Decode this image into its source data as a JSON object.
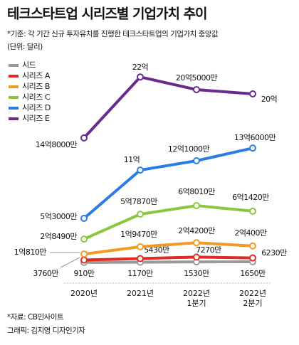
{
  "chart_data": {
    "type": "line",
    "title": "테크스타트업 시리즈별 기업가치 추이",
    "subtitle": "*기준: 각 기간 신규 투자유치를 진행한 테크스타트업의 기업가치 중앙값",
    "unit": "(단위: 달러)",
    "source": "*자료: CB인사이트",
    "credit": "그래픽: 김지영 디자인기자",
    "categories": [
      "2020년",
      "2021년",
      "2022년\n1분기",
      "2022년\n2분기"
    ],
    "series": [
      {
        "name": "시드",
        "color": "#9a9a9a",
        "values": [
          9100000,
          11700000,
          15300000,
          16500000
        ],
        "value_labels": [
          "910만",
          "1170만",
          "1530만",
          "1650만"
        ]
      },
      {
        "name": "시리즈 A",
        "color": "#e12a23",
        "values": [
          37600000,
          54300000,
          72700000,
          62300000
        ],
        "value_labels": [
          "3760만",
          "5430만",
          "7270만",
          "6230만"
        ]
      },
      {
        "name": "시리즈 B",
        "color": "#f39a24",
        "values": [
          108100000,
          194700000,
          242000000,
          204000000
        ],
        "value_labels": [
          "1억810만",
          "1억9470만",
          "2억4200만",
          "2억400만"
        ]
      },
      {
        "name": "시리즈 C",
        "color": "#8cc63e",
        "values": [
          284900000,
          578700000,
          680100000,
          614200000
        ],
        "value_labels": [
          "2억8490만",
          "5억7870만",
          "6억8010만",
          "6억1420만"
        ]
      },
      {
        "name": "시리즈 D",
        "color": "#2b7de6",
        "values": [
          530000000,
          1100000000,
          1210000000,
          1360000000
        ],
        "value_labels": [
          "5억3000만",
          "11억",
          "12억1000만",
          "13억6000만"
        ]
      },
      {
        "name": "시리즈 E",
        "color": "#6a2a8e",
        "values": [
          1480000000,
          2200000000,
          2050000000,
          2000000000
        ],
        "value_labels": [
          "14억8000만",
          "22억",
          "20억5000만",
          "20억"
        ]
      }
    ]
  }
}
